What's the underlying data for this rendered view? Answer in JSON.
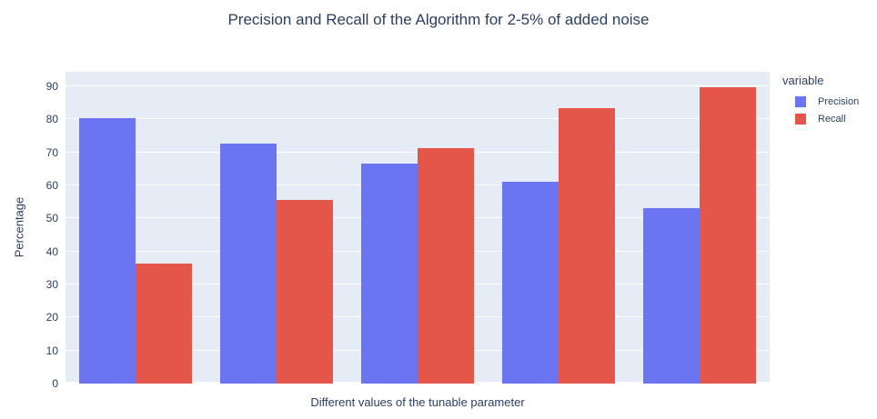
{
  "title": "Precision and Recall of the Algorithm for 2-5% of added noise",
  "legend": {
    "title": "variable",
    "items": [
      {
        "label": "Precision",
        "color": "#6B75F2"
      },
      {
        "label": "Recall",
        "color": "#E5564A"
      }
    ]
  },
  "colors": {
    "plot_background": "#E5ECF6",
    "grid": "#FFFFFF",
    "text": "#2A3F5F",
    "precision": "#6B75F2",
    "recall": "#E5564A"
  },
  "chart_data": {
    "type": "bar",
    "title": "Precision and Recall of the Algorithm for 2-5% of added noise",
    "xlabel": "Different values of the tunable parameter",
    "ylabel": "Percentage",
    "legend_title": "variable",
    "legend_position": "right",
    "grid": true,
    "x_ticks_labeled": false,
    "categories": [
      "",
      "",
      "",
      "",
      ""
    ],
    "series": [
      {
        "name": "Precision",
        "color": "#6B75F2",
        "values": [
          80.3,
          72.8,
          66.7,
          61.0,
          53.2
        ]
      },
      {
        "name": "Recall",
        "color": "#E5564A",
        "values": [
          36.2,
          55.5,
          71.4,
          83.3,
          89.8
        ]
      }
    ],
    "yticks": [
      0,
      10,
      20,
      30,
      40,
      50,
      60,
      70,
      80,
      90
    ],
    "ylim": [
      0,
      94.4
    ]
  }
}
